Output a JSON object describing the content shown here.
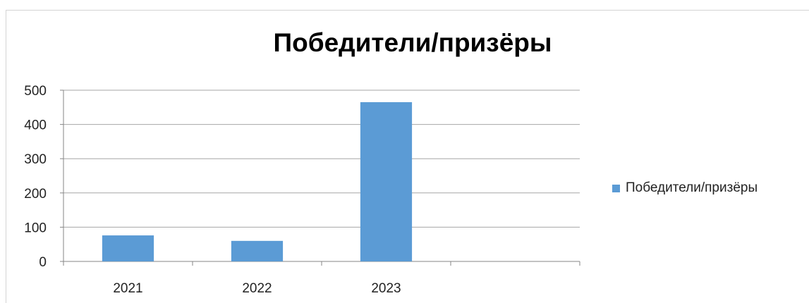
{
  "chart_data": {
    "type": "bar",
    "title": "Победители/призёры",
    "categories": [
      "2021",
      "2022",
      "2023",
      ""
    ],
    "series": [
      {
        "name": "Победители/призёры",
        "values": [
          76,
          60,
          465,
          null
        ],
        "color": "#5b9bd5"
      }
    ],
    "ylim": [
      0,
      500
    ],
    "yticks": [
      0,
      100,
      200,
      300,
      400,
      500
    ],
    "xlabel": "",
    "ylabel": "",
    "grid": true,
    "legend_position": "right"
  }
}
